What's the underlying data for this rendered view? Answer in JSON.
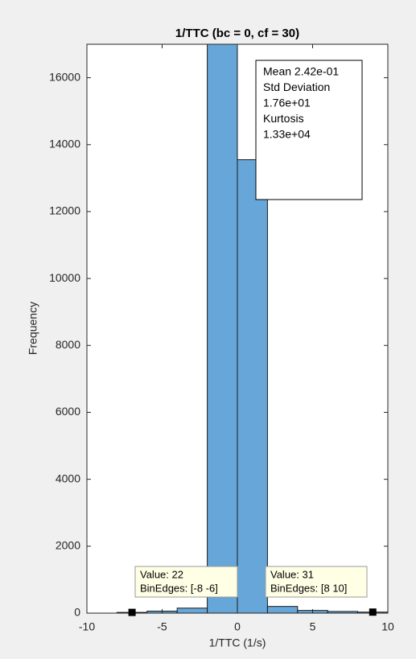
{
  "chart_data": {
    "type": "histogram",
    "title": "1/TTC (bc = 0, cf = 30)",
    "x_label": "1/TTC (1/s)",
    "y_label": "Frequency",
    "bins": [
      -8,
      -6,
      -4,
      -2,
      0,
      2,
      4,
      6,
      8,
      10
    ],
    "values": [
      22,
      60,
      150,
      18000,
      13550,
      200,
      80,
      50,
      31
    ],
    "color": "#66a6d8",
    "xlim": [
      -10,
      10
    ],
    "xticks": [
      -10,
      -5,
      0,
      5,
      10
    ],
    "ylim": [
      0,
      17000
    ],
    "yticks": [
      0,
      2000,
      4000,
      6000,
      8000,
      10000,
      12000,
      14000,
      16000
    ],
    "stats_box": [
      "Mean 2.42e-01",
      "Std Deviation",
      "1.76e+01",
      "Kurtosis",
      "1.33e+04"
    ],
    "datatips": [
      {
        "bin": 0,
        "lines": [
          "Value: 22",
          "BinEdges: [-8 -6]"
        ]
      },
      {
        "bin": 8,
        "lines": [
          "Value: 31",
          "BinEdges: [8 10]"
        ]
      }
    ]
  }
}
